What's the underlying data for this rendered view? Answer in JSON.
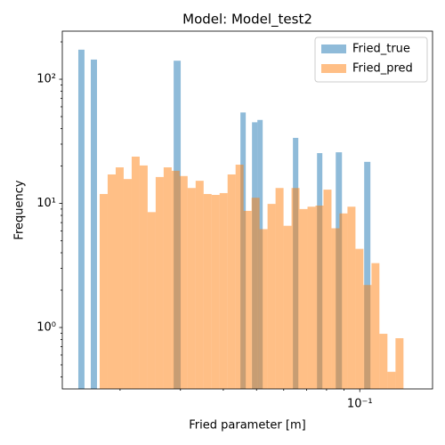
{
  "chart_data": {
    "type": "histogram",
    "title": "Model: Model_test2",
    "x_label": "Fried parameter [m]",
    "y_label": "Frequency",
    "x_log": true,
    "y_log": true,
    "xlim": [
      0.01357,
      0.163
    ],
    "ylim": [
      0.32,
      244
    ],
    "xticks": [
      {
        "value": 0.1,
        "label": "10⁻¹"
      }
    ],
    "xminor_ticks": [
      0.02,
      0.03,
      0.04,
      0.05,
      0.06,
      0.07,
      0.08,
      0.09
    ],
    "yticks": [
      {
        "value": 1,
        "label": "10⁰"
      },
      {
        "value": 10,
        "label": "10¹"
      },
      {
        "value": 100,
        "label": "10²"
      }
    ],
    "yminor_ticks": [
      0.4,
      0.5,
      0.6,
      0.7,
      0.8,
      0.9,
      2,
      3,
      4,
      5,
      6,
      7,
      8,
      9,
      20,
      30,
      40,
      50,
      60,
      70,
      80,
      90,
      200
    ],
    "legend": "upper right",
    "series": [
      {
        "name": "Fried_true",
        "color": "#1f77b4",
        "alpha": 0.5,
        "bins": [
          0.01511,
          0.01575,
          0.01643,
          0.01713,
          0.02866,
          0.03005,
          0.04487,
          0.04651,
          0.0485,
          0.05028,
          0.05211,
          0.06384,
          0.06619,
          0.07505,
          0.07778,
          0.0851,
          0.08873,
          0.103,
          0.1074
        ],
        "values": [
          173,
          0,
          144,
          0,
          141,
          0,
          54,
          0,
          45,
          47,
          0,
          33.7,
          0,
          25.4,
          0,
          25.8,
          0,
          21.6
        ]
      },
      {
        "name": "Fried_pred",
        "color": "#ff7f0e",
        "alpha": 0.5,
        "bins": [
          0.01744,
          0.0184,
          0.01942,
          0.02049,
          0.02162,
          0.02281,
          0.02407,
          0.0254,
          0.0268,
          0.02828,
          0.02984,
          0.03148,
          0.03322,
          0.03505,
          0.03698,
          0.03902,
          0.04117,
          0.04344,
          0.04583,
          0.04836,
          0.05103,
          0.05384,
          0.05681,
          0.05994,
          0.06324,
          0.06673,
          0.07041,
          0.07429,
          0.07838,
          0.0827,
          0.08726,
          0.09207,
          0.09715,
          0.1025,
          0.1082,
          0.1141,
          0.1204,
          0.1271,
          0.1341
        ],
        "values": [
          11.9,
          17.1,
          19.5,
          15.7,
          23.8,
          20.2,
          8.5,
          16.3,
          19.5,
          18.3,
          16.6,
          13.3,
          15.2,
          11.9,
          11.7,
          12.1,
          17.1,
          20.5,
          8.7,
          11.1,
          6.2,
          9.9,
          13.3,
          6.6,
          13.3,
          9.0,
          9.4,
          9.6,
          12.9,
          6.3,
          8.3,
          9.4,
          4.3,
          2.2,
          3.3,
          0.89,
          0.44,
          0.82
        ]
      }
    ]
  }
}
